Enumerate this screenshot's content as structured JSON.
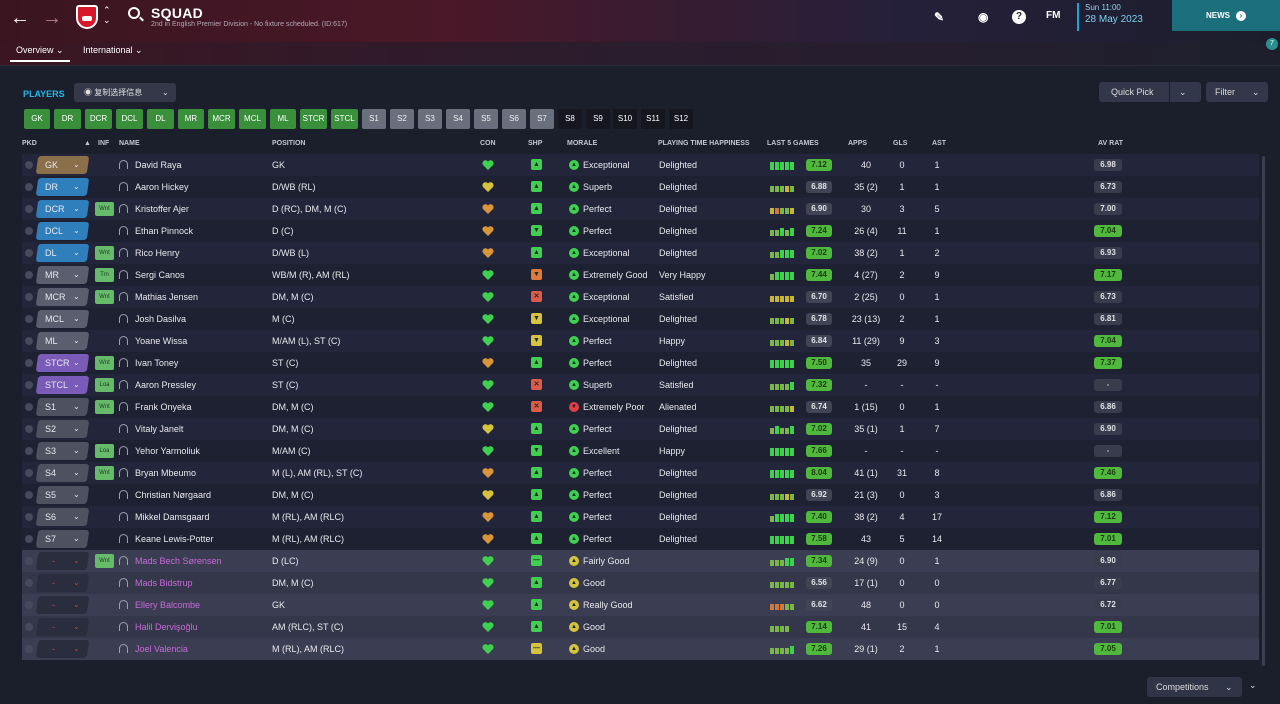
{
  "header": {
    "title": "SQUAD",
    "subtitle": "2nd in English Premier Division - No fixture scheduled. (ID:617)",
    "date_time": "Sun 11:00",
    "date_date": "28 May 2023",
    "fm_label": "FM",
    "news_label": "NEWS",
    "notification_count": "7"
  },
  "subnav": {
    "tabs": [
      {
        "label": "Overview ⌄"
      },
      {
        "label": "International ⌄"
      }
    ]
  },
  "toolbar": {
    "players_label": "PLAYERS",
    "copy_label": "复制选择信息",
    "quick_pick_label": "Quick Pick",
    "filter_label": "Filter"
  },
  "position_buttons": [
    {
      "label": "GK",
      "group": "green"
    },
    {
      "label": "DR",
      "group": "green"
    },
    {
      "label": "DCR",
      "group": "green"
    },
    {
      "label": "DCL",
      "group": "green"
    },
    {
      "label": "DL",
      "group": "green"
    },
    {
      "label": "MR",
      "group": "green"
    },
    {
      "label": "MCR",
      "group": "green"
    },
    {
      "label": "MCL",
      "group": "green"
    },
    {
      "label": "ML",
      "group": "green"
    },
    {
      "label": "STCR",
      "group": "green"
    },
    {
      "label": "STCL",
      "group": "green"
    },
    {
      "label": "S1",
      "group": "grey"
    },
    {
      "label": "S2",
      "group": "grey"
    },
    {
      "label": "S3",
      "group": "grey"
    },
    {
      "label": "S4",
      "group": "grey"
    },
    {
      "label": "S5",
      "group": "grey"
    },
    {
      "label": "S6",
      "group": "grey"
    },
    {
      "label": "S7",
      "group": "grey"
    },
    {
      "label": "S8",
      "group": "black"
    },
    {
      "label": "S9",
      "group": "black"
    },
    {
      "label": "S10",
      "group": "black"
    },
    {
      "label": "S11",
      "group": "black"
    },
    {
      "label": "S12",
      "group": "black"
    }
  ],
  "columns": {
    "pkd": "PKD",
    "inf": "INF",
    "name": "NAME",
    "position": "POSITION",
    "con": "CON",
    "shp": "SHP",
    "morale": "MORALE",
    "pth": "PLAYING TIME HAPPINESS",
    "l5": "LAST 5 GAMES",
    "apps": "APPS",
    "gls": "GLS",
    "ast": "AST",
    "avr": "AV RAT"
  },
  "colors": {
    "gk": "#8a6f4a",
    "def": "#2f7fbd",
    "mid": "#5a5e6e",
    "att": "#7a5bb8",
    "sub": "#4d5160",
    "green_btn": "#3a8f3a",
    "grey_btn": "#6a6f7d",
    "black_btn": "#15161f",
    "accent": "#1aa6d9",
    "heart": "#3fd04f",
    "heart_yellow": "#d6c23c",
    "heart_orange": "#d9953a"
  },
  "players": [
    {
      "pkd": "GK",
      "cls": "gk",
      "inf": "",
      "name": "David Raya",
      "position": "GK",
      "con": "g",
      "shp": "g",
      "shp_sym": "▲",
      "morale_ic": "g",
      "morale": "Exceptional",
      "pth": "Delighted",
      "l5": "hhhhh",
      "rating": "7.12",
      "rat_cls": "g",
      "apps": "40",
      "gls": "0",
      "ast": "1",
      "avr": "6.98",
      "avr_cls": "n",
      "inact": false
    },
    {
      "pkd": "DR",
      "cls": "def",
      "inf": "",
      "name": "Aaron Hickey",
      "position": "D/WB (RL)",
      "con": "y",
      "shp": "g",
      "shp_sym": "▲",
      "morale_ic": "g",
      "morale": "Superb",
      "pth": "Delighted",
      "l5": "gggyg",
      "rating": "6.88",
      "rat_cls": "n",
      "apps": "35 (2)",
      "gls": "1",
      "ast": "1",
      "avr": "6.73",
      "avr_cls": "n",
      "inact": false
    },
    {
      "pkd": "DCR",
      "cls": "def",
      "inf": "Wnt",
      "name": "Kristoffer Ajer",
      "position": "D (RC), DM, M (C)",
      "con": "o",
      "shp": "g",
      "shp_sym": "▲",
      "morale_ic": "g",
      "morale": "Perfect",
      "pth": "Delighted",
      "l5": "yoggy",
      "rating": "6.90",
      "rat_cls": "n",
      "apps": "30",
      "gls": "3",
      "ast": "5",
      "avr": "7.00",
      "avr_cls": "n",
      "inact": false
    },
    {
      "pkd": "DCL",
      "cls": "def",
      "inf": "",
      "name": "Ethan Pinnock",
      "position": "D (C)",
      "con": "o",
      "shp": "g",
      "shp_sym": "▼",
      "morale_ic": "g",
      "morale": "Perfect",
      "pth": "Delighted",
      "l5": "gghgh",
      "rating": "7.24",
      "rat_cls": "g",
      "apps": "26 (4)",
      "gls": "11",
      "ast": "1",
      "avr": "7.04",
      "avr_cls": "g",
      "inact": false
    },
    {
      "pkd": "DL",
      "cls": "def",
      "inf": "Wnt",
      "name": "Rico Henry",
      "position": "D/WB (L)",
      "con": "o",
      "shp": "g",
      "shp_sym": "▲",
      "morale_ic": "g",
      "morale": "Exceptional",
      "pth": "Delighted",
      "l5": "gghhh",
      "rating": "7.02",
      "rat_cls": "g",
      "apps": "38 (2)",
      "gls": "1",
      "ast": "2",
      "avr": "6.93",
      "avr_cls": "n",
      "inact": false
    },
    {
      "pkd": "MR",
      "cls": "mid",
      "inf": "Trn",
      "name": "Sergi Canos",
      "position": "WB/M (R), AM (RL)",
      "con": "g",
      "shp": "o",
      "shp_sym": "▼",
      "morale_ic": "g",
      "morale": "Extremely Good",
      "pth": "Very Happy",
      "l5": "ghhhh",
      "rating": "7.44",
      "rat_cls": "g",
      "apps": "4 (27)",
      "gls": "2",
      "ast": "9",
      "avr": "7.17",
      "avr_cls": "g",
      "inact": false
    },
    {
      "pkd": "MCR",
      "cls": "mid",
      "inf": "Wnt",
      "name": "Mathias Jensen",
      "position": "DM, M (C)",
      "con": "g",
      "shp": "r",
      "shp_sym": "✕",
      "morale_ic": "g",
      "morale": "Exceptional",
      "pth": "Satisfied",
      "l5": "yyyyy",
      "rating": "6.70",
      "rat_cls": "n",
      "apps": "2 (25)",
      "gls": "0",
      "ast": "1",
      "avr": "6.73",
      "avr_cls": "n",
      "inact": false
    },
    {
      "pkd": "MCL",
      "cls": "mid",
      "inf": "",
      "name": "Josh Dasilva",
      "position": "M (C)",
      "con": "g",
      "shp": "y",
      "shp_sym": "▼",
      "morale_ic": "g",
      "morale": "Exceptional",
      "pth": "Delighted",
      "l5": "gggyg",
      "rating": "6.78",
      "rat_cls": "n",
      "apps": "23 (13)",
      "gls": "2",
      "ast": "1",
      "avr": "6.81",
      "avr_cls": "n",
      "inact": false
    },
    {
      "pkd": "ML",
      "cls": "mid",
      "inf": "",
      "name": "Yoane Wissa",
      "position": "M/AM (L), ST (C)",
      "con": "g",
      "shp": "y",
      "shp_sym": "▼",
      "morale_ic": "g",
      "morale": "Perfect",
      "pth": "Happy",
      "l5": "gggyg",
      "rating": "6.84",
      "rat_cls": "n",
      "apps": "11 (29)",
      "gls": "9",
      "ast": "3",
      "avr": "7.04",
      "avr_cls": "g",
      "inact": false
    },
    {
      "pkd": "STCR",
      "cls": "att",
      "inf": "Wnt",
      "name": "Ivan Toney",
      "position": "ST (C)",
      "con": "o",
      "shp": "g",
      "shp_sym": "▲",
      "morale_ic": "g",
      "morale": "Perfect",
      "pth": "Delighted",
      "l5": "hhhhh",
      "rating": "7.50",
      "rat_cls": "g",
      "apps": "35",
      "gls": "29",
      "ast": "9",
      "avr": "7.37",
      "avr_cls": "g",
      "inact": false
    },
    {
      "pkd": "STCL",
      "cls": "att",
      "inf": "Loa",
      "name": "Aaron Pressley",
      "position": "ST (C)",
      "con": "g",
      "shp": "r",
      "shp_sym": "✕",
      "morale_ic": "g",
      "morale": "Superb",
      "pth": "Satisfied",
      "l5": "ggggh",
      "rating": "7.32",
      "rat_cls": "g",
      "apps": "-",
      "gls": "-",
      "ast": "-",
      "avr": "-",
      "avr_cls": "d",
      "inact": false
    },
    {
      "pkd": "S1",
      "cls": "sub",
      "inf": "Wnt",
      "name": "Frank Onyeka",
      "position": "DM, M (C)",
      "con": "g",
      "shp": "r",
      "shp_sym": "✕",
      "morale_ic": "r",
      "morale": "Extremely Poor",
      "pth": "Alienated",
      "l5": "ggggy",
      "rating": "6.74",
      "rat_cls": "n",
      "apps": "1 (15)",
      "gls": "0",
      "ast": "1",
      "avr": "6.86",
      "avr_cls": "n",
      "inact": false
    },
    {
      "pkd": "S2",
      "cls": "sub",
      "inf": "",
      "name": "Vitaly Janelt",
      "position": "DM, M (C)",
      "con": "y",
      "shp": "g",
      "shp_sym": "▲",
      "morale_ic": "g",
      "morale": "Perfect",
      "pth": "Delighted",
      "l5": "ghggh",
      "rating": "7.02",
      "rat_cls": "g",
      "apps": "35 (1)",
      "gls": "1",
      "ast": "7",
      "avr": "6.90",
      "avr_cls": "n",
      "inact": false
    },
    {
      "pkd": "S3",
      "cls": "sub",
      "inf": "Loa",
      "name": "Yehor Yarmoliuk",
      "position": "M/AM (C)",
      "con": "g",
      "shp": "g",
      "shp_sym": "▼",
      "morale_ic": "g",
      "morale": "Excellent",
      "pth": "Happy",
      "l5": "hhhhh",
      "rating": "7.66",
      "rat_cls": "g",
      "apps": "-",
      "gls": "-",
      "ast": "-",
      "avr": "-",
      "avr_cls": "d",
      "inact": false
    },
    {
      "pkd": "S4",
      "cls": "sub",
      "inf": "Wnt",
      "name": "Bryan Mbeumo",
      "position": "M (L), AM (RL), ST (C)",
      "con": "o",
      "shp": "g",
      "shp_sym": "▲",
      "morale_ic": "g",
      "morale": "Perfect",
      "pth": "Delighted",
      "l5": "hhhhh",
      "rating": "8.04",
      "rat_cls": "g",
      "apps": "41 (1)",
      "gls": "31",
      "ast": "8",
      "avr": "7.46",
      "avr_cls": "g",
      "inact": false
    },
    {
      "pkd": "S5",
      "cls": "sub",
      "inf": "",
      "name": "Christian Nørgaard",
      "position": "DM, M (C)",
      "con": "y",
      "shp": "g",
      "shp_sym": "▲",
      "morale_ic": "g",
      "morale": "Perfect",
      "pth": "Delighted",
      "l5": "gggyg",
      "rating": "6.92",
      "rat_cls": "n",
      "apps": "21 (3)",
      "gls": "0",
      "ast": "3",
      "avr": "6.86",
      "avr_cls": "n",
      "inact": false
    },
    {
      "pkd": "S6",
      "cls": "sub",
      "inf": "",
      "name": "Mikkel Damsgaard",
      "position": "M (RL), AM (RLC)",
      "con": "o",
      "shp": "g",
      "shp_sym": "▲",
      "morale_ic": "g",
      "morale": "Perfect",
      "pth": "Delighted",
      "l5": "ghhhh",
      "rating": "7.40",
      "rat_cls": "g",
      "apps": "38 (2)",
      "gls": "4",
      "ast": "17",
      "avr": "7.12",
      "avr_cls": "g",
      "inact": false
    },
    {
      "pkd": "S7",
      "cls": "sub",
      "inf": "",
      "name": "Keane Lewis-Potter",
      "position": "M (RL), AM (RLC)",
      "con": "o",
      "shp": "g",
      "shp_sym": "▲",
      "morale_ic": "g",
      "morale": "Perfect",
      "pth": "Delighted",
      "l5": "hhhhh",
      "rating": "7.58",
      "rat_cls": "g",
      "apps": "43",
      "gls": "5",
      "ast": "14",
      "avr": "7.01",
      "avr_cls": "g",
      "inact": false
    },
    {
      "pkd": "-",
      "cls": "none",
      "inf": "Wnt",
      "name": "Mads Bech Sørensen",
      "position": "D (LC)",
      "con": "g",
      "shp": "g",
      "shp_sym": "—",
      "morale_ic": "y",
      "morale": "Fairly Good",
      "pth": "",
      "l5": "ggghh",
      "rating": "7.34",
      "rat_cls": "g",
      "apps": "24 (9)",
      "gls": "0",
      "ast": "1",
      "avr": "6.90",
      "avr_cls": "n",
      "inact": true
    },
    {
      "pkd": "-",
      "cls": "none",
      "inf": "",
      "name": "Mads Bidstrup",
      "position": "DM, M (C)",
      "con": "g",
      "shp": "g",
      "shp_sym": "▲",
      "morale_ic": "y",
      "morale": "Good",
      "pth": "",
      "l5": "ggggg",
      "rating": "6.56",
      "rat_cls": "n",
      "apps": "17 (1)",
      "gls": "0",
      "ast": "0",
      "avr": "6.77",
      "avr_cls": "n",
      "inact": true
    },
    {
      "pkd": "-",
      "cls": "none",
      "inf": "",
      "name": "Ellery Balcombe",
      "position": "GK",
      "con": "g",
      "shp": "g",
      "shp_sym": "▲",
      "morale_ic": "y",
      "morale": "Really Good",
      "pth": "",
      "l5": "ooogg",
      "rating": "6.62",
      "rat_cls": "n",
      "apps": "48",
      "gls": "0",
      "ast": "0",
      "avr": "6.72",
      "avr_cls": "n",
      "inact": true
    },
    {
      "pkd": "-",
      "cls": "none",
      "inf": "",
      "name": "Halil Dervişoğlu",
      "position": "AM (RLC), ST (C)",
      "con": "g",
      "shp": "g",
      "shp_sym": "▲",
      "morale_ic": "y",
      "morale": "Good",
      "pth": "",
      "l5": "gggg",
      "rating": "7.14",
      "rat_cls": "g",
      "apps": "41",
      "gls": "15",
      "ast": "4",
      "avr": "7.01",
      "avr_cls": "g",
      "inact": true
    },
    {
      "pkd": "-",
      "cls": "none",
      "inf": "",
      "name": "Joel Valencia",
      "position": "M (RL), AM (RLC)",
      "con": "g",
      "shp": "y",
      "shp_sym": "—",
      "morale_ic": "y",
      "morale": "Good",
      "pth": "",
      "l5": "ggggh",
      "rating": "7.26",
      "rat_cls": "g",
      "apps": "29 (1)",
      "gls": "2",
      "ast": "1",
      "avr": "7.05",
      "avr_cls": "g",
      "inact": true
    }
  ],
  "footer": {
    "competitions_label": "Competitions"
  }
}
